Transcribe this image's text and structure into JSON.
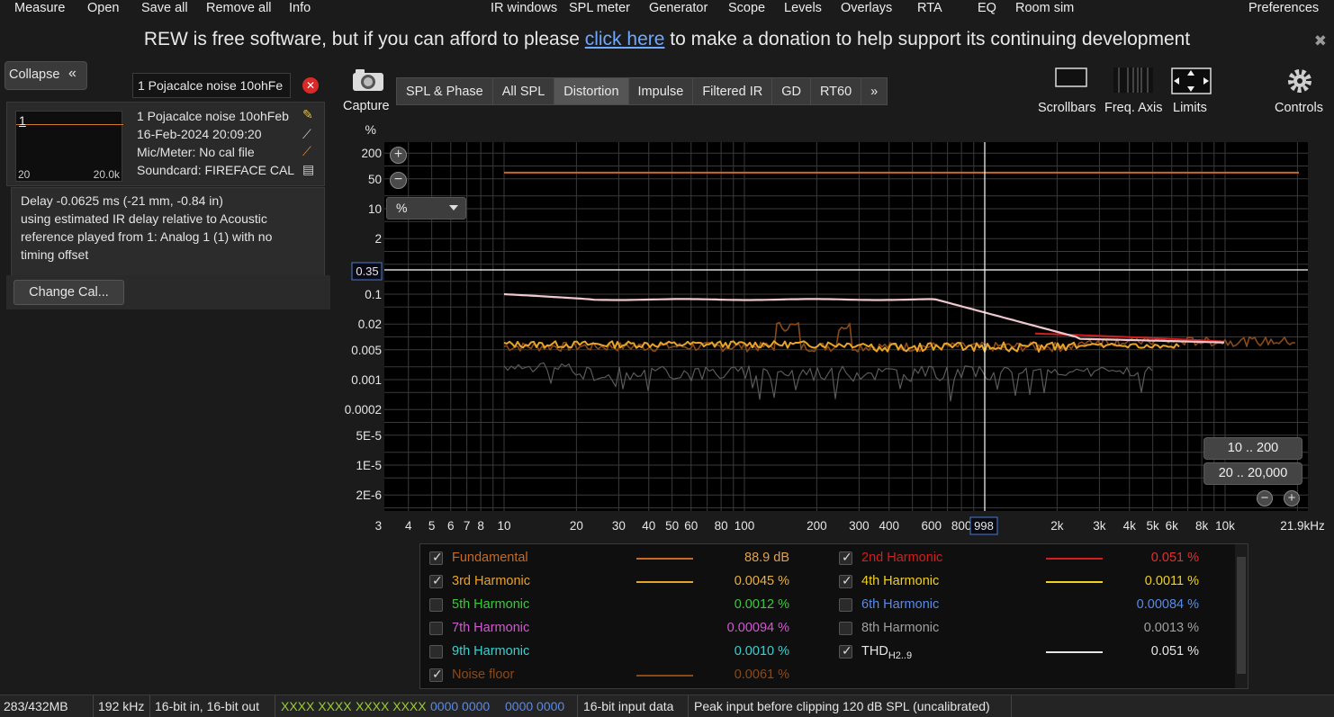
{
  "menu": {
    "left": [
      "Measure",
      "Open",
      "Save all",
      "Remove all",
      "Info"
    ],
    "center": [
      "IR windows",
      "SPL meter",
      "Generator",
      "Scope",
      "Levels",
      "Overlays",
      "RTA",
      "EQ",
      "Room sim"
    ],
    "right": "Preferences"
  },
  "donation": {
    "before": "REW is free software, but if you can afford to please ",
    "link": "click here",
    "after": " to make a donation to help support its continuing development"
  },
  "left_panel": {
    "collapse_label": "Collapse",
    "name_field": "1 Pojacalce noise 10ohFe",
    "thumb_index": "1",
    "thumb_lo": "20",
    "thumb_hi": "20.0k",
    "info_name": "1 Pojacalce noise 10ohFeb",
    "info_date": "16-Feb-2024 20:09:20",
    "info_mic": "Mic/Meter: No cal file",
    "info_soundcard": "Soundcard: FIREFACE CAL",
    "delay_lines": [
      "Delay -0.0625 ms (-21 mm, -0.84 in)",
      "using estimated IR delay relative to Acoustic",
      "reference played from 1: Analog 1 (1) with no",
      "timing offset"
    ],
    "change_cal": "Change Cal..."
  },
  "capture_label": "Capture",
  "tabs": [
    "SPL & Phase",
    "All SPL",
    "Distortion",
    "Impulse",
    "Filtered IR",
    "GD",
    "RT60",
    "»"
  ],
  "active_tab": "Distortion",
  "toolbar": {
    "scrollbars": "Scrollbars",
    "freq_axis": "Freq. Axis",
    "limits": "Limits",
    "controls": "Controls"
  },
  "graph": {
    "y_unit": "%",
    "unit_select": "%",
    "y_ticks": [
      "200",
      "50",
      "10",
      "2",
      "0.1",
      "0.02",
      "0.005",
      "0.001",
      "0.0002",
      "5E-5",
      "1E-5",
      "2E-6"
    ],
    "x_ticks": [
      "3",
      "4",
      "5",
      "6",
      "7",
      "8",
      "10",
      "20",
      "30",
      "40",
      "50",
      "60",
      "80",
      "100",
      "200",
      "300",
      "400",
      "600",
      "800",
      "2k",
      "3k",
      "4k",
      "5k",
      "6k",
      "8k",
      "10k",
      "21.9kHz"
    ],
    "cursor_x": "998",
    "cursor_y": "0.35",
    "range_btn_1": "10 .. 200",
    "range_btn_2": "20 .. 20,000",
    "colors": {
      "fundamental": "#c76a24",
      "harmonic2": "#d21e1e",
      "harmonic3": "#e8a32a",
      "harmonic4": "#f0d020",
      "thd": "#e6e6e6",
      "noise": "#8a4a18",
      "grid": "#3a3a3a"
    }
  },
  "legend": [
    {
      "name": "Fundamental",
      "value": "88.9 dB",
      "checked": true,
      "color": "#c76a24",
      "value_color": "#e0a050",
      "line": true
    },
    {
      "name": "2nd Harmonic",
      "value": "0.051 %",
      "checked": true,
      "color": "#d21e1e",
      "value_color": "#e03030",
      "line": true
    },
    {
      "name": "3rd Harmonic",
      "value": "0.0045 %",
      "checked": true,
      "color": "#e8a32a",
      "value_color": "#e8b040",
      "line": true
    },
    {
      "name": "4th Harmonic",
      "value": "0.0011 %",
      "checked": true,
      "color": "#f0d020",
      "value_color": "#f0d020",
      "line": true
    },
    {
      "name": "5th Harmonic",
      "value": "0.0012 %",
      "checked": false,
      "color": "#3cc83c",
      "value_color": "#3cc83c",
      "line": false
    },
    {
      "name": "6th Harmonic",
      "value": "0.00084 %",
      "checked": false,
      "color": "#5a8ae6",
      "value_color": "#5a8ae6",
      "line": false
    },
    {
      "name": "7th Harmonic",
      "value": "0.00094 %",
      "checked": false,
      "color": "#d05ad0",
      "value_color": "#d05ad0",
      "line": false
    },
    {
      "name": "8th Harmonic",
      "value": "0.0013 %",
      "checked": false,
      "color": "#a0a0a0",
      "value_color": "#a0a0a0",
      "line": false
    },
    {
      "name": "9th Harmonic",
      "value": "0.0010 %",
      "checked": false,
      "color": "#3ad0d0",
      "value_color": "#3ad0d0",
      "line": false
    },
    {
      "name": "THD",
      "sub": "H2..9",
      "value": "0.051 %",
      "checked": true,
      "color": "#e6e6e6",
      "value_color": "#e6e6e6",
      "line": true
    },
    {
      "name": "Noise floor",
      "value": "0.0061 %",
      "checked": true,
      "color": "#8a4a18",
      "value_color": "#8a4a18",
      "line": true
    }
  ],
  "status": [
    "283/432MB",
    "192 kHz",
    "16-bit in, 16-bit out",
    "XXXX XXXX",
    "XXXX XXXX",
    "0000 0000",
    "0000 0000",
    "16-bit input data",
    "Peak input before clipping 120 dB SPL (uncalibrated)"
  ]
}
